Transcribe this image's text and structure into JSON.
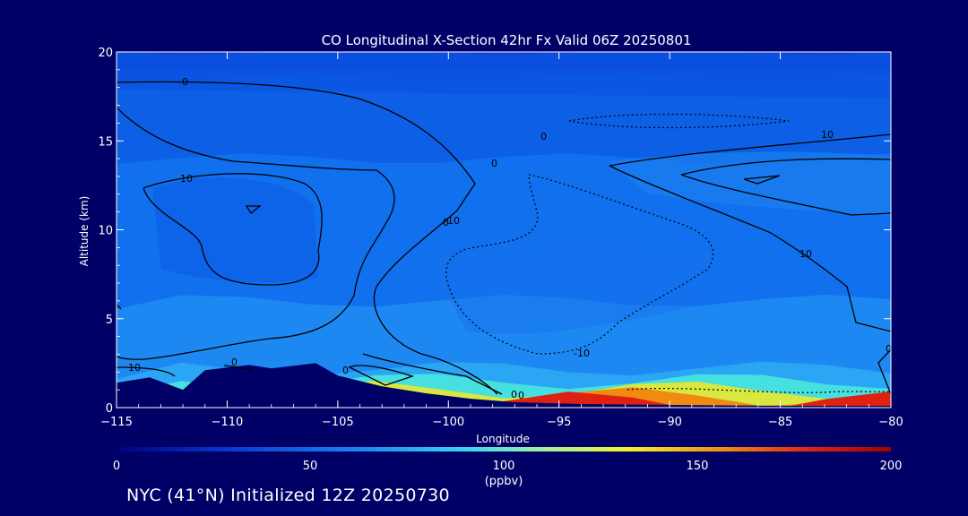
{
  "chart_data": {
    "type": "heatmap",
    "title": "CO Longitudinal X-Section 42hr  Fx Valid 06Z 20250801",
    "xlabel": "Longitude",
    "ylabel": "Altitude (km)",
    "xlim": [
      -115,
      -80
    ],
    "ylim": [
      0,
      20
    ],
    "x_ticks": [
      "-115",
      "-110",
      "-105",
      "-100",
      "-95",
      "-90",
      "-85",
      "-80"
    ],
    "y_ticks": [
      "0",
      "5",
      "10",
      "15",
      "20"
    ],
    "colorbar": {
      "range": [
        0,
        200
      ],
      "ticks": [
        "0",
        "50",
        "100",
        "150",
        "200"
      ],
      "unit": "(ppbv)"
    },
    "contour_labels": [
      "0",
      "10",
      "10",
      "0",
      "0",
      "10",
      "0",
      "10",
      "0",
      "0",
      "0",
      "0",
      "-10",
      "-10",
      "0"
    ],
    "terrain_top_km": [
      1.4,
      1.7,
      1.0,
      2.1,
      2.4,
      2.2,
      2.5,
      1.8,
      1.2,
      0.8,
      0.5,
      0.3,
      0.2,
      0.15,
      0.1,
      0.1
    ],
    "terrain_lon": [
      -115,
      -113.5,
      -112,
      -111,
      -109,
      -108,
      -106,
      -105,
      -103,
      -101,
      -99,
      -97,
      -94,
      -90,
      -85,
      -80
    ],
    "layers": [
      {
        "level": 20,
        "top_km": 20,
        "color": "#0b4fe0"
      },
      {
        "level": 30,
        "top_km": 18.5,
        "color": "#0d5fe6"
      },
      {
        "level": 40,
        "top_km": 14,
        "color": "#1170ee"
      },
      {
        "level": 50,
        "top_km": 6,
        "color": "#1d88f2"
      },
      {
        "level": 60,
        "top_km": 2.2,
        "color": "#2aa6f5"
      },
      {
        "level": 80,
        "top_km": 1.5,
        "color": "#46e0e0"
      },
      {
        "level": 110,
        "top_km": 1.0,
        "color": "#d8e840"
      },
      {
        "level": 150,
        "top_km": 0.6,
        "color": "#f08a10"
      },
      {
        "level": 180,
        "top_km": 0.3,
        "color": "#e02010"
      }
    ]
  },
  "footer": {
    "text": "NYC (41°N) Initialized 12Z 20250730"
  }
}
